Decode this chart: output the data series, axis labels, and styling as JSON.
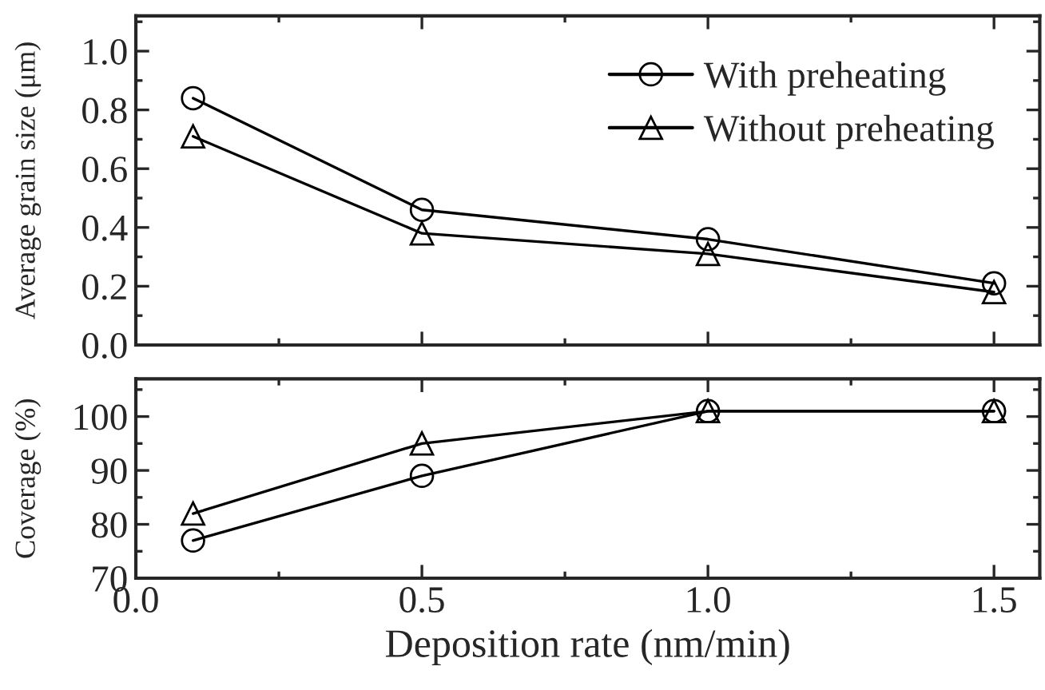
{
  "chart_data": [
    {
      "type": "line",
      "ylabel": "Average grain size (μm)",
      "x": [
        0.1,
        0.5,
        1.0,
        1.5
      ],
      "series": [
        {
          "name": "With preheating",
          "color": "#000000",
          "marker": "circle",
          "values": [
            0.84,
            0.46,
            0.36,
            0.21
          ]
        },
        {
          "name": "Without preheating",
          "color": "#000000",
          "marker": "triangle",
          "values": [
            0.71,
            0.38,
            0.31,
            0.18
          ]
        }
      ],
      "xlim": [
        0.0,
        1.58
      ],
      "xticks": [
        0.0,
        0.5,
        1.0,
        1.5
      ],
      "ylim": [
        0.0,
        1.12
      ],
      "yticks": [
        {
          "value": 0,
          "label": "0.0"
        },
        0.2,
        0.4,
        0.6,
        0.8,
        {
          "value": 1,
          "label": "1.0"
        }
      ],
      "tick_labels": "y",
      "legend": "top right",
      "grid": false
    },
    {
      "type": "line",
      "xlabel": "Deposition rate (nm/min)",
      "ylabel": "Coverage (%)",
      "x": [
        0.1,
        0.5,
        1.0,
        1.5
      ],
      "xticks": [
        {
          "value": 0,
          "label": "0.0"
        },
        0.5,
        {
          "value": 1,
          "label": "1.0"
        },
        1.5
      ],
      "series": [
        {
          "color": "#000000",
          "marker": "circle",
          "values": [
            77,
            89,
            101,
            101
          ]
        },
        {
          "color": "#000000",
          "marker": "triangle",
          "values": [
            82,
            95,
            101,
            101
          ]
        }
      ],
      "xlim": [
        0.0,
        1.58
      ],
      "ylim": [
        70,
        107
      ],
      "yticks": [
        70,
        80,
        90,
        100
      ],
      "grid": false
    }
  ]
}
